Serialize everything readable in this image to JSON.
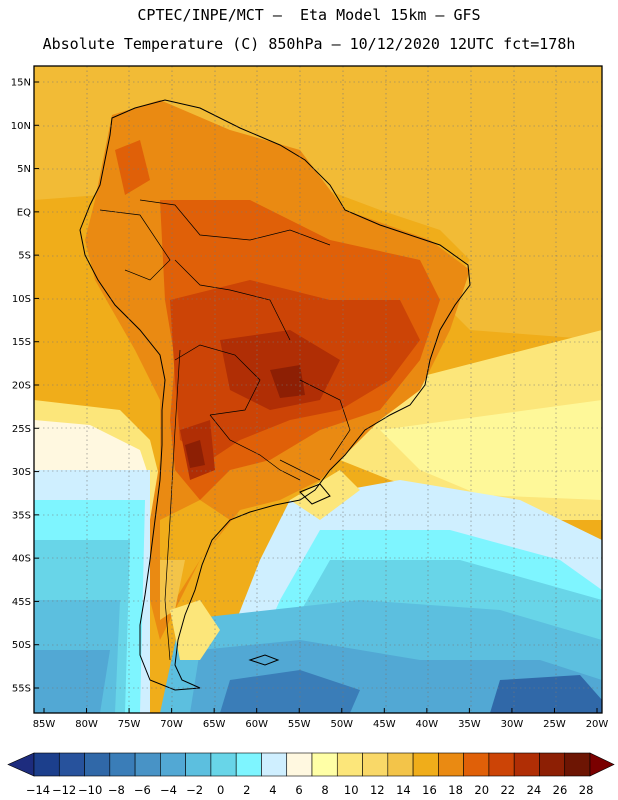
{
  "header": {
    "line1": "CPTEC/INPE/MCT –  Eta Model 15km – GFS",
    "line2": "Absolute Temperature (C) 850hPa – 10/12/2020 12UTC fct=178h"
  },
  "map": {
    "region": "South America",
    "lat_labels": [
      "15N",
      "10N",
      "5N",
      "EQ",
      "5S",
      "10S",
      "15S",
      "20S",
      "25S",
      "30S",
      "35S",
      "40S",
      "45S",
      "50S",
      "55S"
    ],
    "lon_labels": [
      "85W",
      "80W",
      "75W",
      "70W",
      "65W",
      "60W",
      "55W",
      "50W",
      "45W",
      "40W",
      "35W",
      "30W",
      "25W",
      "20W"
    ],
    "lat_values": [
      15,
      10,
      5,
      0,
      -5,
      -10,
      -15,
      -20,
      -25,
      -30,
      -35,
      -40,
      -45,
      -50,
      -55
    ],
    "lon_values": [
      -85,
      -80,
      -75,
      -70,
      -65,
      -60,
      -55,
      -50,
      -45,
      -40,
      -35,
      -30,
      -25,
      -20
    ]
  },
  "colorbar": {
    "labels": [
      "-14",
      "-12",
      "-10",
      "-8",
      "-6",
      "-4",
      "-2",
      "0",
      "2",
      "4",
      "6",
      "8",
      "10",
      "12",
      "14",
      "16",
      "18",
      "20",
      "22",
      "24",
      "26",
      "28"
    ],
    "colors": [
      "#1c3f8c",
      "#27529c",
      "#3068a8",
      "#3a7db8",
      "#4893c6",
      "#52a8d4",
      "#5cbfdf",
      "#68d5e8",
      "#7ef5ff",
      "#cfefff",
      "#fff8e0",
      "#ffffa6",
      "#fce67a",
      "#f9d868",
      "#f3c449",
      "#f0ad1a",
      "#ea8a12",
      "#e06008",
      "#cc4406",
      "#b02e05",
      "#8d1f04",
      "#6d1503"
    ],
    "left_arrow_color": "#1d2c7e",
    "right_arrow_color": "#7a0000"
  }
}
